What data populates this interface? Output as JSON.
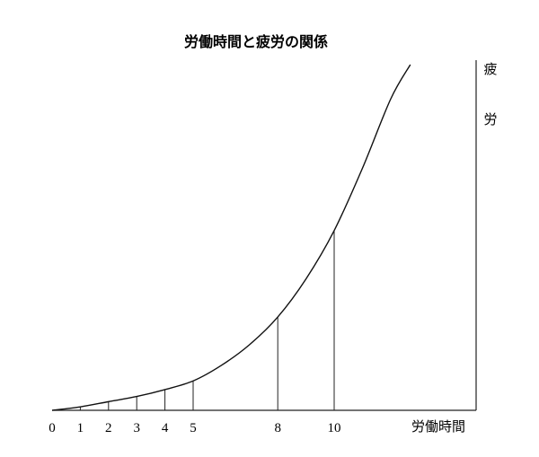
{
  "chart_data": {
    "type": "line",
    "title": "労働時間と疲労の関係",
    "xlabel": "労働時間",
    "ylabel": "疲労",
    "xlim": [
      0,
      12.7
    ],
    "ylim": [
      0,
      1
    ],
    "grid": false,
    "x_ticks": [
      0,
      1,
      2,
      3,
      4,
      5,
      8,
      10
    ],
    "series": [
      {
        "values": [
          {
            "x": 0,
            "y": 0.0
          },
          {
            "x": 1,
            "y": 0.01
          },
          {
            "x": 2,
            "y": 0.025
          },
          {
            "x": 3,
            "y": 0.04
          },
          {
            "x": 4,
            "y": 0.06
          },
          {
            "x": 5,
            "y": 0.085
          },
          {
            "x": 6,
            "y": 0.13
          },
          {
            "x": 7,
            "y": 0.19
          },
          {
            "x": 8,
            "y": 0.27
          },
          {
            "x": 9,
            "y": 0.38
          },
          {
            "x": 10,
            "y": 0.52
          },
          {
            "x": 11,
            "y": 0.7
          },
          {
            "x": 12,
            "y": 0.9
          },
          {
            "x": 12.7,
            "y": 1.0
          }
        ]
      }
    ]
  }
}
